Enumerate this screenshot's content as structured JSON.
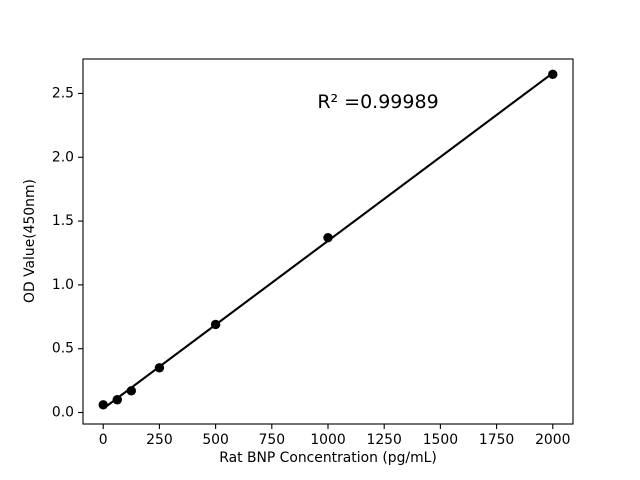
{
  "chart_data": {
    "type": "scatter",
    "title": "",
    "xlabel": "Rat BNP Concentration (pg/mL)",
    "ylabel": "OD Value(450nm)",
    "annotation": "R² =0.99989",
    "r_squared": 0.99989,
    "series": [
      {
        "name": "standard-points",
        "x": [
          0,
          62.5,
          125,
          250,
          500,
          1000,
          2000
        ],
        "y": [
          0.06,
          0.1,
          0.17,
          0.35,
          0.69,
          1.37,
          2.65
        ]
      }
    ],
    "fit_line": {
      "type": "linear-regression-through-points",
      "shown": true
    },
    "xticks": [
      0,
      250,
      500,
      750,
      1000,
      1250,
      1500,
      1750,
      2000
    ],
    "yticks": [
      0.0,
      0.5,
      1.0,
      1.5,
      2.0,
      2.5
    ],
    "xlim": [
      -90,
      2090
    ],
    "ylim": [
      -0.09,
      2.77
    ],
    "grid": false,
    "legend": false,
    "marker_color": "#000000",
    "line_color": "#000000",
    "axis_color": "#000000",
    "background": "#ffffff"
  }
}
